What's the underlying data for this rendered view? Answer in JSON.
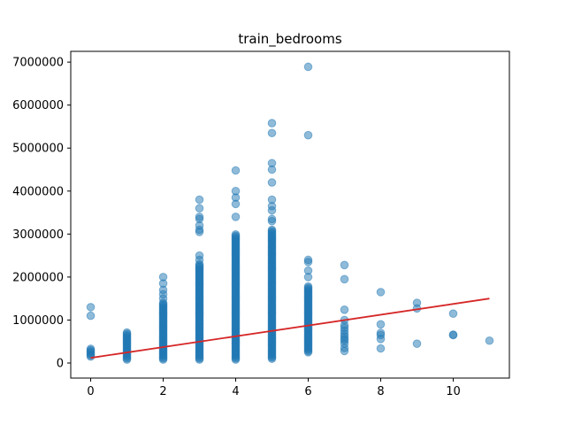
{
  "chart_data": {
    "type": "scatter",
    "title": "train_bedrooms",
    "xlabel": "",
    "ylabel": "",
    "xlim": [
      -0.55,
      11.55
    ],
    "ylim": [
      -350000,
      7250000
    ],
    "x_ticks": [
      0,
      2,
      4,
      6,
      8,
      10
    ],
    "x_tick_labels": [
      "0",
      "2",
      "4",
      "6",
      "8",
      "10"
    ],
    "y_ticks": [
      0,
      1000000,
      2000000,
      3000000,
      4000000,
      5000000,
      6000000,
      7000000
    ],
    "y_tick_labels": [
      "0",
      "1000000",
      "2000000",
      "3000000",
      "4000000",
      "5000000",
      "6000000",
      "7000000"
    ],
    "grid": false,
    "colors": {
      "points": "#1f77b4",
      "fit_line": "#d62728"
    },
    "point_opacity": 0.5,
    "series": [
      {
        "kind": "points",
        "columns": [
          {
            "x": 0,
            "min": 150000,
            "max": 350000,
            "outliers": [
              1100000,
              1300000
            ]
          },
          {
            "x": 1,
            "min": 80000,
            "max": 720000,
            "outliers": []
          },
          {
            "x": 2,
            "min": 80000,
            "max": 1400000,
            "outliers": [
              1500000,
              1600000,
              1700000,
              1850000,
              2000000
            ]
          },
          {
            "x": 3,
            "min": 80000,
            "max": 2300000,
            "outliers": [
              2400000,
              2500000,
              3050000,
              3100000,
              3200000,
              3350000,
              3400000,
              3600000,
              3800000
            ]
          },
          {
            "x": 4,
            "min": 80000,
            "max": 3000000,
            "outliers": [
              3400000,
              3700000,
              3850000,
              4000000,
              4480000
            ]
          },
          {
            "x": 5,
            "min": 100000,
            "max": 3100000,
            "outliers": [
              3300000,
              3350000,
              3550000,
              3650000,
              3800000,
              4200000,
              4500000,
              4650000,
              5350000,
              5580000
            ]
          },
          {
            "x": 6,
            "min": 250000,
            "max": 1800000,
            "outliers": [
              2000000,
              2150000,
              2350000,
              2400000,
              5300000,
              6890000
            ]
          },
          {
            "x": 7,
            "values": [
              280000,
              350000,
              450000,
              520000,
              560000,
              620000,
              680000,
              750000,
              820000,
              880000,
              1000000,
              1240000,
              1950000,
              2280000
            ]
          },
          {
            "x": 8,
            "values": [
              340000,
              560000,
              650000,
              700000,
              900000,
              1650000
            ]
          },
          {
            "x": 9,
            "values": [
              450000,
              1270000,
              1400000
            ]
          },
          {
            "x": 10,
            "values": [
              650000,
              660000,
              1150000
            ]
          },
          {
            "x": 11,
            "values": [
              520000
            ]
          }
        ]
      },
      {
        "kind": "line",
        "x": [
          0,
          11
        ],
        "values": [
          120000,
          1500000
        ]
      }
    ]
  }
}
